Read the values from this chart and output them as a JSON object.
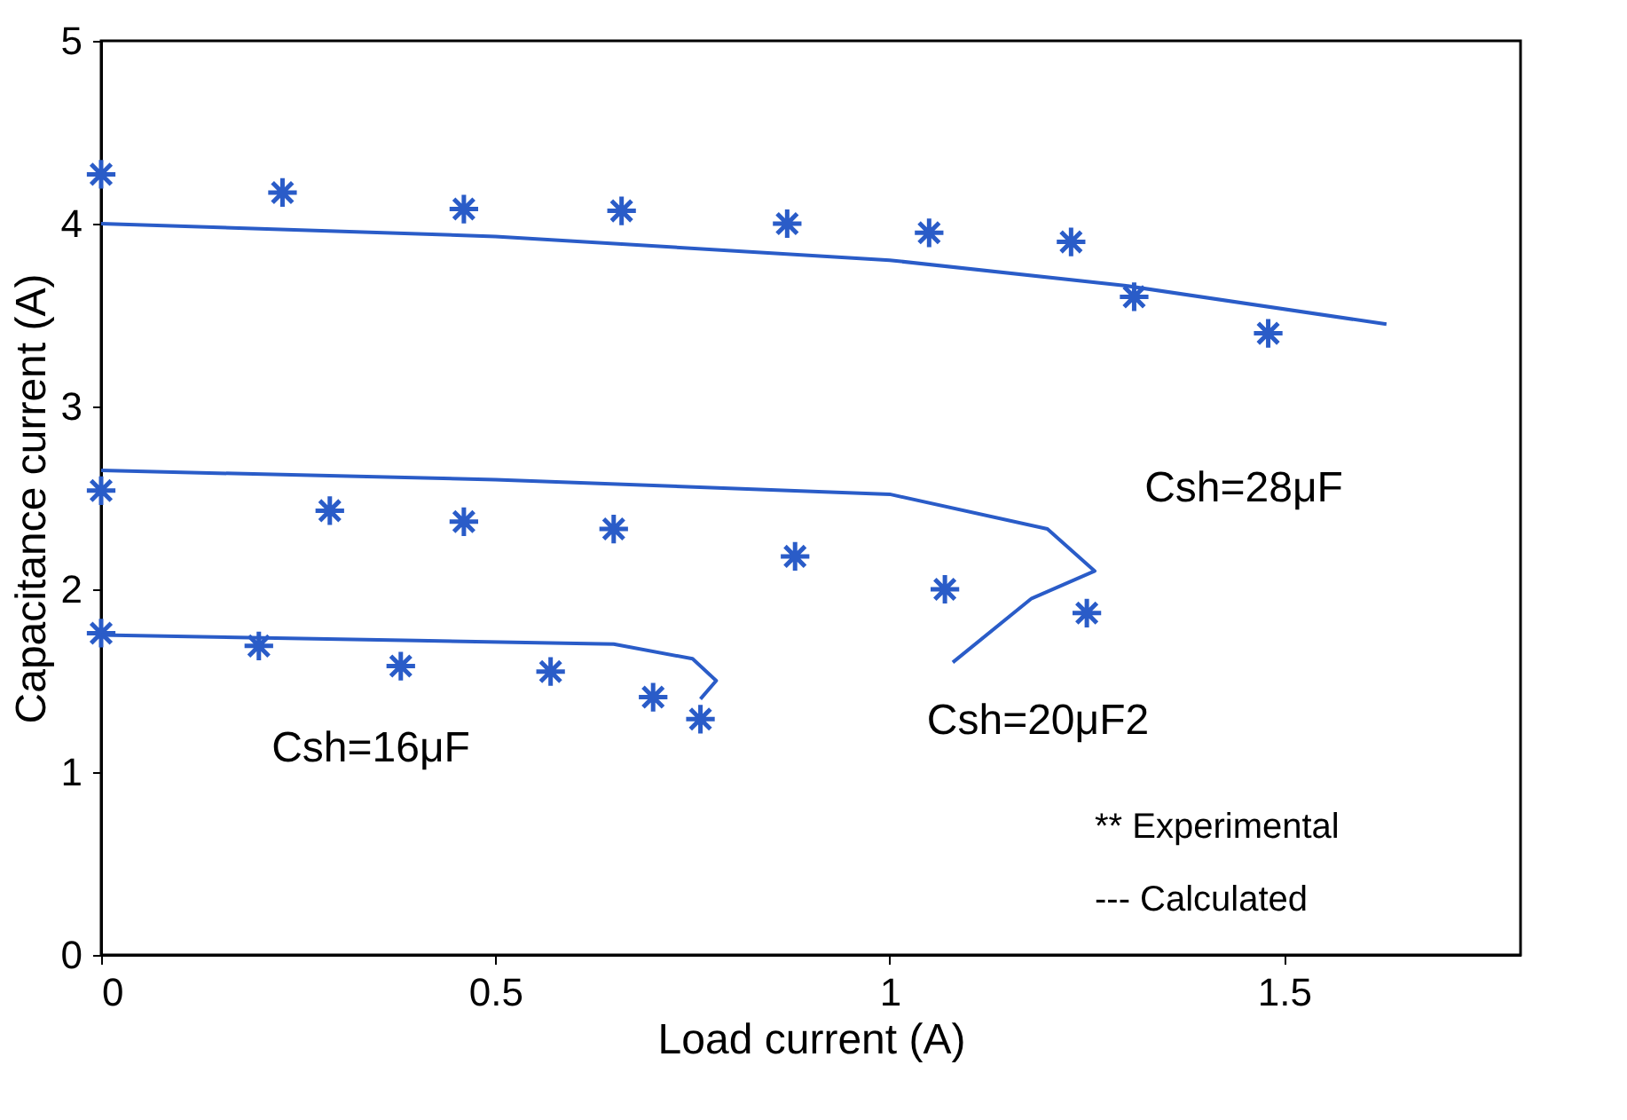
{
  "chart_data": {
    "type": "scatter",
    "xlabel": "Load current (A)",
    "ylabel": "Capacitance current (A)",
    "xlim": [
      0,
      1.8
    ],
    "ylim": [
      0,
      5
    ],
    "xticks": [
      0,
      0.5,
      1,
      1.5
    ],
    "yticks": [
      0,
      1,
      2,
      3,
      4,
      5
    ],
    "grid": false,
    "series": [
      {
        "color": "#2a5cc8",
        "marker": "cross",
        "x": [
          0,
          0.23,
          0.46,
          0.66,
          0.87,
          1.05,
          1.23,
          1.31,
          1.48
        ],
        "values": [
          4.27,
          4.17,
          4.08,
          4.07,
          4.0,
          3.95,
          3.9,
          3.6,
          3.4
        ]
      },
      {
        "type": "line",
        "color": "#2a5cc8",
        "line_style": "solid",
        "x": [
          0,
          0.5,
          1.0,
          1.3,
          1.63
        ],
        "values": [
          4.0,
          3.93,
          3.8,
          3.66,
          3.45
        ]
      },
      {
        "color": "#2a5cc8",
        "marker": "cross",
        "x": [
          0,
          0.29,
          0.46,
          0.65,
          0.88,
          1.07,
          1.25
        ],
        "values": [
          2.54,
          2.43,
          2.37,
          2.33,
          2.18,
          2.0,
          1.87
        ]
      },
      {
        "type": "line",
        "color": "#2a5cc8",
        "line_style": "solid",
        "x": [
          0,
          0.5,
          1.0,
          1.2,
          1.26,
          1.18,
          1.08
        ],
        "values": [
          2.65,
          2.6,
          2.52,
          2.33,
          2.1,
          1.95,
          1.6
        ]
      },
      {
        "color": "#2a5cc8",
        "marker": "cross",
        "x": [
          0,
          0.2,
          0.38,
          0.57,
          0.7,
          0.76
        ],
        "values": [
          1.76,
          1.69,
          1.58,
          1.55,
          1.41,
          1.29
        ]
      },
      {
        "type": "line",
        "color": "#2a5cc8",
        "line_style": "solid",
        "x": [
          0,
          0.4,
          0.65,
          0.75,
          0.78,
          0.76
        ],
        "values": [
          1.75,
          1.72,
          1.7,
          1.62,
          1.5,
          1.4
        ]
      }
    ],
    "annotations": [
      "Csh=28μF",
      "Csh=20μF2",
      "Csh=16μF",
      "**    Experimental",
      "---   Calculated"
    ]
  }
}
